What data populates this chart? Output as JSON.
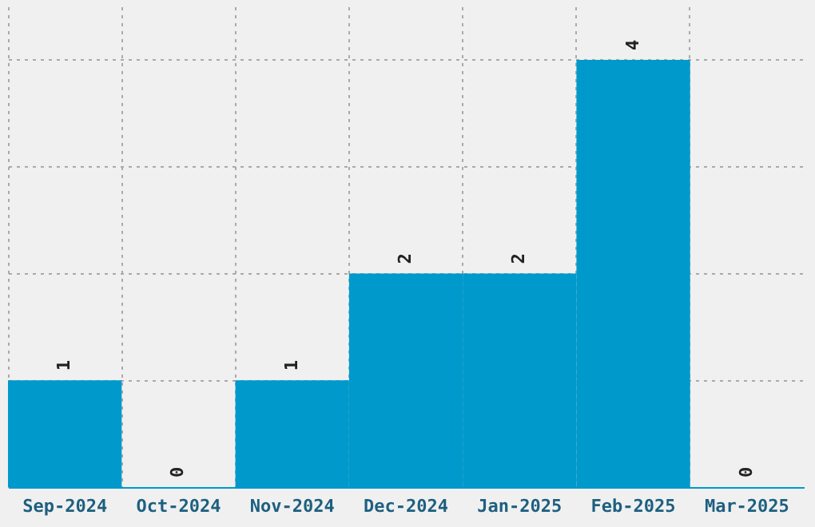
{
  "chart_data": {
    "type": "bar",
    "categories": [
      "Sep-2024",
      "Oct-2024",
      "Nov-2024",
      "Dec-2024",
      "Jan-2025",
      "Feb-2025",
      "Mar-2025"
    ],
    "values": [
      1,
      0,
      1,
      2,
      2,
      4,
      0
    ],
    "color": "#0099cc",
    "ylim": [
      0,
      4.5
    ],
    "data_labels": true,
    "grid": true,
    "tick_labels": "x"
  }
}
